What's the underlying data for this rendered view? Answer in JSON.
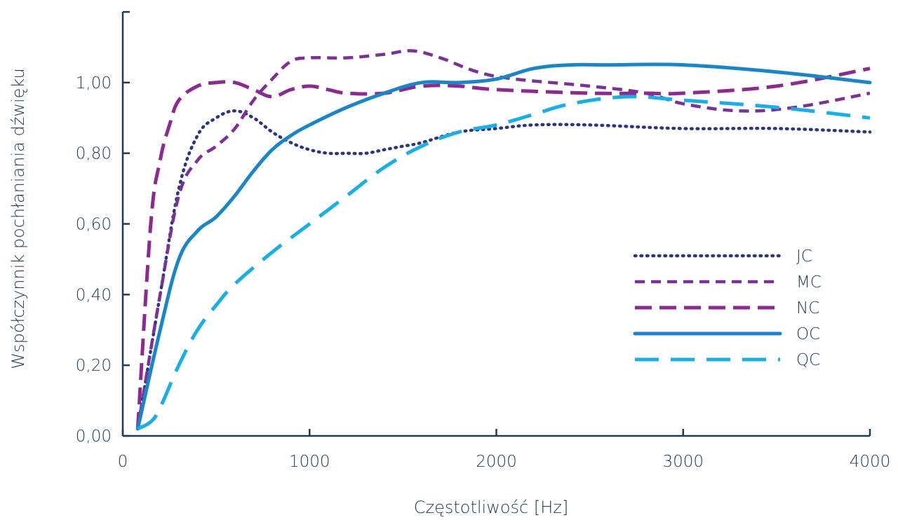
{
  "chart_data": {
    "type": "line",
    "xlabel": "Częstotliwość [Hz]",
    "ylabel": "Współczynnik pochłaniania dźwięku",
    "xlim": [
      0,
      4000
    ],
    "ylim": [
      0,
      1.2
    ],
    "x_ticks": [
      0,
      1000,
      2000,
      3000,
      4000
    ],
    "x_tick_labels": [
      "0",
      "1000",
      "2000",
      "3000",
      "4000"
    ],
    "y_ticks": [
      0,
      0.2,
      0.4,
      0.6,
      0.8,
      1.0
    ],
    "y_tick_labels": [
      "0,00",
      "0,20",
      "0,40",
      "0,60",
      "0,80",
      "1,00"
    ],
    "grid": false,
    "legend_position": "right-middle",
    "series": [
      {
        "name": "JC",
        "color": "#2e3580",
        "style": "dotted",
        "x": [
          80,
          200,
          300,
          400,
          500,
          600,
          700,
          800,
          900,
          1000,
          1100,
          1200,
          1300,
          1400,
          1500,
          1600,
          1800,
          2000,
          2200,
          2500,
          3000,
          3500,
          4000
        ],
        "y": [
          0.02,
          0.4,
          0.7,
          0.85,
          0.9,
          0.92,
          0.9,
          0.86,
          0.83,
          0.81,
          0.8,
          0.8,
          0.8,
          0.81,
          0.82,
          0.83,
          0.86,
          0.87,
          0.88,
          0.88,
          0.87,
          0.87,
          0.86
        ]
      },
      {
        "name": "MC",
        "color": "#7b3294",
        "style": "short-dash",
        "x": [
          80,
          200,
          300,
          400,
          500,
          600,
          700,
          800,
          900,
          1000,
          1200,
          1400,
          1550,
          1700,
          1900,
          2100,
          2500,
          2800,
          3000,
          3300,
          3600,
          4000
        ],
        "y": [
          0.02,
          0.4,
          0.68,
          0.78,
          0.82,
          0.87,
          0.95,
          1.01,
          1.06,
          1.07,
          1.07,
          1.08,
          1.09,
          1.07,
          1.03,
          1.01,
          0.99,
          0.97,
          0.94,
          0.92,
          0.93,
          0.97
        ]
      },
      {
        "name": "NC",
        "color": "#8b2a8f",
        "style": "dash",
        "x": [
          80,
          150,
          200,
          250,
          300,
          400,
          500,
          600,
          700,
          800,
          900,
          1000,
          1100,
          1200,
          1400,
          1600,
          1800,
          2000,
          2500,
          2800,
          3000,
          3500,
          4000
        ],
        "y": [
          0.02,
          0.6,
          0.78,
          0.88,
          0.95,
          0.99,
          1.0,
          1.0,
          0.98,
          0.96,
          0.98,
          0.99,
          0.98,
          0.97,
          0.97,
          0.99,
          0.99,
          0.98,
          0.97,
          0.97,
          0.97,
          0.99,
          1.04
        ]
      },
      {
        "name": "OC",
        "color": "#1a85c8",
        "style": "solid",
        "x": [
          80,
          200,
          300,
          400,
          500,
          600,
          700,
          800,
          900,
          1000,
          1200,
          1400,
          1600,
          1800,
          2000,
          2200,
          2400,
          2600,
          3000,
          3500,
          4000
        ],
        "y": [
          0.02,
          0.3,
          0.5,
          0.58,
          0.62,
          0.68,
          0.75,
          0.81,
          0.85,
          0.88,
          0.93,
          0.97,
          1.0,
          1.0,
          1.01,
          1.04,
          1.05,
          1.05,
          1.05,
          1.03,
          1.0
        ]
      },
      {
        "name": "QC",
        "color": "#1aaee6",
        "style": "long-dash",
        "x": [
          80,
          150,
          200,
          300,
          400,
          500,
          600,
          800,
          1000,
          1200,
          1400,
          1600,
          1800,
          2000,
          2200,
          2400,
          2700,
          3000,
          3500,
          4000
        ],
        "y": [
          0.02,
          0.04,
          0.08,
          0.2,
          0.3,
          0.37,
          0.43,
          0.52,
          0.6,
          0.68,
          0.76,
          0.82,
          0.86,
          0.88,
          0.91,
          0.94,
          0.96,
          0.95,
          0.93,
          0.9
        ]
      }
    ]
  }
}
